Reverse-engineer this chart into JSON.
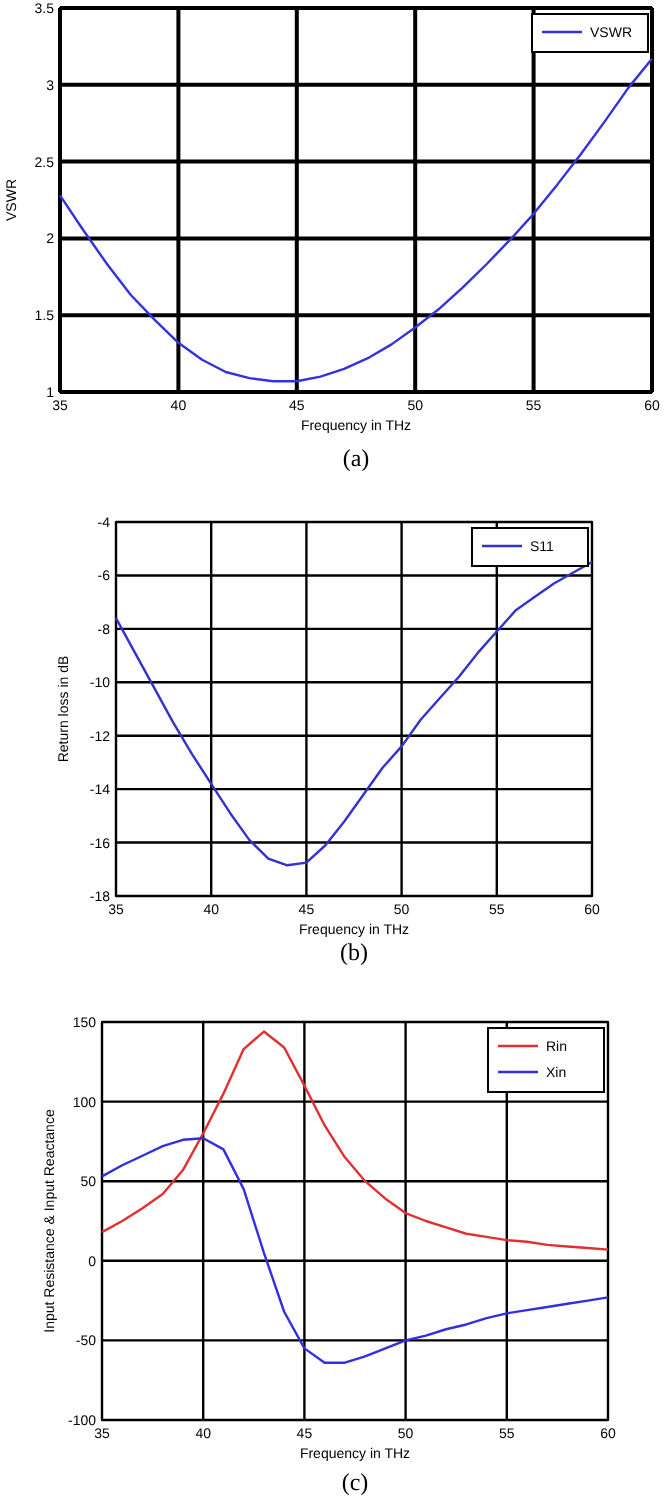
{
  "chart_data": [
    {
      "type": "line",
      "xlabel": "Frequency in THz",
      "ylabel": "VSWR",
      "x": [
        35,
        36,
        37,
        38,
        39,
        40,
        41,
        42,
        43,
        44,
        45,
        46,
        47,
        48,
        49,
        50,
        51,
        52,
        53,
        54,
        55,
        56,
        57,
        58,
        59,
        60
      ],
      "xlim": [
        35,
        60
      ],
      "ylim": [
        1,
        3.5
      ],
      "xticks": [
        35,
        40,
        45,
        50,
        55,
        60
      ],
      "yticks": [
        1,
        1.5,
        2,
        2.5,
        3,
        3.5
      ],
      "grid": true,
      "legend": "top right",
      "annotations": [
        "(a)"
      ],
      "series": [
        {
          "name": "VSWR",
          "color": "#3333dd",
          "values": [
            2.28,
            2.05,
            1.83,
            1.63,
            1.47,
            1.32,
            1.21,
            1.13,
            1.09,
            1.07,
            1.07,
            1.1,
            1.15,
            1.22,
            1.31,
            1.42,
            1.54,
            1.68,
            1.83,
            1.99,
            2.16,
            2.35,
            2.55,
            2.76,
            2.98,
            3.17
          ]
        }
      ]
    },
    {
      "type": "line",
      "xlabel": "Frequency in THz",
      "ylabel": "Return loss in dB",
      "x": [
        35,
        36,
        37,
        38,
        39,
        40,
        41,
        42,
        43,
        44,
        45,
        46,
        47,
        48,
        49,
        50,
        51,
        52,
        53,
        54,
        55,
        56,
        57,
        58,
        59,
        60
      ],
      "xlim": [
        35,
        60
      ],
      "ylim": [
        -18,
        -4
      ],
      "xticks": [
        35,
        40,
        45,
        50,
        55,
        60
      ],
      "yticks": [
        -18,
        -16,
        -14,
        -12,
        -10,
        -8,
        -6,
        -4
      ],
      "grid": true,
      "legend": "top right",
      "annotations": [
        "(b)"
      ],
      "series": [
        {
          "name": "S11",
          "color": "#3333cc",
          "values": [
            -7.6,
            -8.9,
            -10.2,
            -11.5,
            -12.7,
            -13.8,
            -14.9,
            -15.9,
            -16.6,
            -16.85,
            -16.75,
            -16.1,
            -15.2,
            -14.2,
            -13.2,
            -12.4,
            -11.4,
            -10.6,
            -9.8,
            -8.9,
            -8.1,
            -7.3,
            -6.8,
            -6.3,
            -5.9,
            -5.5
          ]
        }
      ]
    },
    {
      "type": "line",
      "xlabel": "Frequency in THz",
      "ylabel": "Input Resistance & Input Reactance",
      "x": [
        35,
        36,
        37,
        38,
        39,
        40,
        41,
        42,
        43,
        44,
        45,
        46,
        47,
        48,
        49,
        50,
        51,
        52,
        53,
        54,
        55,
        56,
        57,
        58,
        59,
        60
      ],
      "xlim": [
        35,
        60
      ],
      "ylim": [
        -100,
        150
      ],
      "xticks": [
        35,
        40,
        45,
        50,
        55,
        60
      ],
      "yticks": [
        -100,
        -50,
        0,
        50,
        100,
        150
      ],
      "grid": true,
      "legend": "top right",
      "annotations": [
        "(c)"
      ],
      "series": [
        {
          "name": "Rin",
          "color": "#e03030",
          "values": [
            18,
            25,
            33,
            42,
            57,
            80,
            105,
            133,
            144,
            134,
            110,
            85,
            65,
            50,
            39,
            30,
            25,
            21,
            17,
            15,
            13,
            12,
            10,
            9,
            8,
            7
          ]
        },
        {
          "name": "Xin",
          "color": "#3030e0",
          "values": [
            53,
            60,
            66,
            72,
            76,
            77,
            70,
            45,
            5,
            -32,
            -55,
            -64,
            -64,
            -60,
            -55,
            -50,
            -47,
            -43,
            -40,
            -36,
            -33,
            -31,
            -29,
            -27,
            -25,
            -23
          ]
        }
      ]
    }
  ]
}
